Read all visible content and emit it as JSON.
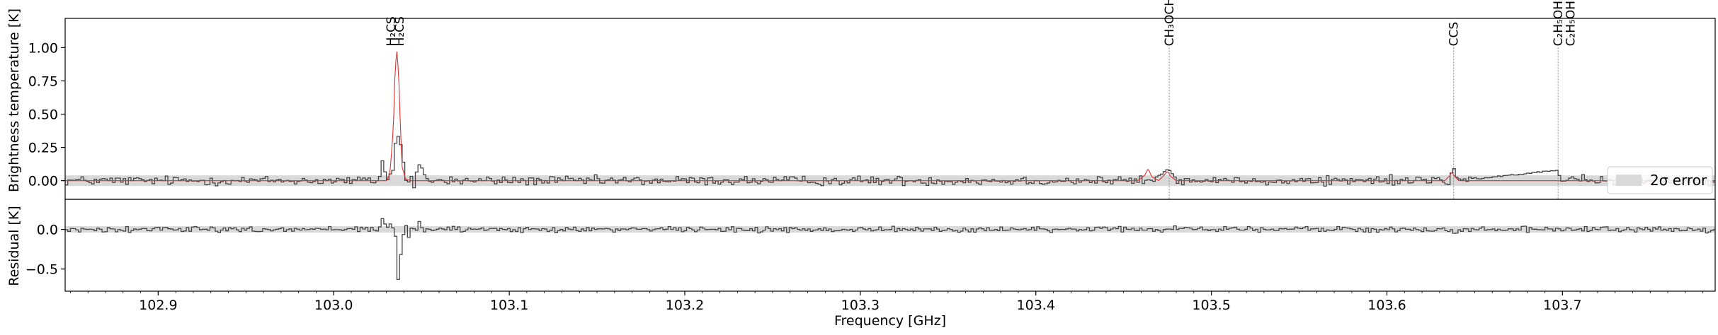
{
  "chart_data": [
    {
      "type": "line",
      "panel": "spectrum",
      "xlabel": "",
      "ylabel": "Brightness temperature [K]",
      "xlim": [
        102.847,
        103.787
      ],
      "ylim": [
        -0.14,
        1.22
      ],
      "yticks": [
        {
          "value": 0.0,
          "label": "0.00"
        },
        {
          "value": 0.25,
          "label": "0.25"
        },
        {
          "value": 0.5,
          "label": "0.50"
        },
        {
          "value": 0.75,
          "label": "0.75"
        },
        {
          "value": 1.0,
          "label": "1.00"
        }
      ],
      "grid": false,
      "legend": {
        "placement": "right",
        "entries": [
          "2σ error"
        ]
      },
      "error_band": {
        "low": -0.04,
        "high": 0.04,
        "color": "#d9d9d9"
      },
      "series": [
        {
          "role": "observed",
          "style": "steps",
          "color": "#444444",
          "x": [
            102.85,
            103.025,
            103.028,
            103.029,
            103.031,
            103.032,
            103.034,
            103.035,
            103.036,
            103.037,
            103.038,
            103.04,
            103.041,
            103.043,
            103.045,
            103.047,
            103.049,
            103.052,
            103.465,
            103.47,
            103.475,
            103.48,
            103.635,
            103.637,
            103.638,
            103.64,
            103.697,
            103.698,
            103.785
          ],
          "y": [
            0.0,
            0.0,
            0.22,
            -0.08,
            0.06,
            0.05,
            0.1,
            0.47,
            0.33,
            0.35,
            0.2,
            0.07,
            -0.07,
            0.06,
            -0.05,
            0.11,
            0.12,
            0.0,
            0.0,
            0.04,
            0.09,
            0.0,
            0.0,
            0.12,
            0.05,
            0.0,
            0.08,
            0.0,
            0.0
          ],
          "noise": 0.03
        },
        {
          "role": "model",
          "style": "line",
          "color": "#e03030",
          "x": [
            102.85,
            103.03,
            103.032,
            103.034,
            103.035,
            103.036,
            103.037,
            103.038,
            103.039,
            103.041,
            103.044,
            103.458,
            103.462,
            103.464,
            103.466,
            103.47,
            103.473,
            103.475,
            103.477,
            103.48,
            103.633,
            103.636,
            103.637,
            103.638,
            103.641,
            103.785
          ],
          "y": [
            0.0,
            0.0,
            0.05,
            0.4,
            0.85,
            0.97,
            0.8,
            0.4,
            0.1,
            0.01,
            0.0,
            0.0,
            0.04,
            0.09,
            0.03,
            0.0,
            0.04,
            0.07,
            0.03,
            0.0,
            0.0,
            0.04,
            0.07,
            0.04,
            0.0,
            0.0
          ]
        }
      ],
      "line_markers": [
        {
          "x": 103.0325,
          "label": "H₂CS",
          "dotted": false
        },
        {
          "x": 103.0375,
          "label": "H₂CS",
          "dotted": false
        },
        {
          "x": 103.476,
          "label": "CH₃OCHO",
          "dotted": true
        },
        {
          "x": 103.638,
          "label": "CCS",
          "dotted": true
        },
        {
          "x": 103.6975,
          "label": "C₂H₅OH",
          "dotted": true
        },
        {
          "x": 103.7045,
          "label": "C₂H₅OH",
          "dotted": false
        }
      ]
    },
    {
      "type": "line",
      "panel": "residual",
      "xlabel": "Frequency [GHz]",
      "ylabel": "Residual [K]",
      "xlim": [
        102.847,
        103.787
      ],
      "ylim": [
        -0.78,
        0.38
      ],
      "xticks": [
        {
          "value": 102.9,
          "label": "102.9"
        },
        {
          "value": 103.0,
          "label": "103.0"
        },
        {
          "value": 103.1,
          "label": "103.1"
        },
        {
          "value": 103.2,
          "label": "103.2"
        },
        {
          "value": 103.3,
          "label": "103.3"
        },
        {
          "value": 103.4,
          "label": "103.4"
        },
        {
          "value": 103.5,
          "label": "103.5"
        },
        {
          "value": 103.6,
          "label": "103.6"
        },
        {
          "value": 103.7,
          "label": "103.7"
        }
      ],
      "yticks": [
        {
          "value": 0.0,
          "label": "0.0"
        },
        {
          "value": -0.5,
          "label": "−0.5"
        }
      ],
      "grid": false,
      "error_band": {
        "low": -0.04,
        "high": 0.04,
        "color": "#d9d9d9"
      },
      "series": [
        {
          "role": "residual",
          "style": "steps",
          "color": "#444444",
          "x": [
            102.85,
            103.025,
            103.028,
            103.029,
            103.031,
            103.033,
            103.035,
            103.036,
            103.038,
            103.04,
            103.042,
            103.044,
            103.046,
            103.048,
            103.05,
            103.637,
            103.638,
            103.64,
            103.785
          ],
          "y": [
            0.0,
            0.0,
            0.2,
            -0.07,
            0.08,
            0.02,
            -0.12,
            -0.63,
            -0.22,
            0.1,
            -0.1,
            0.04,
            -0.04,
            0.1,
            0.0,
            0.0,
            -0.09,
            0.0,
            0.0
          ],
          "noise": 0.03
        }
      ]
    }
  ]
}
